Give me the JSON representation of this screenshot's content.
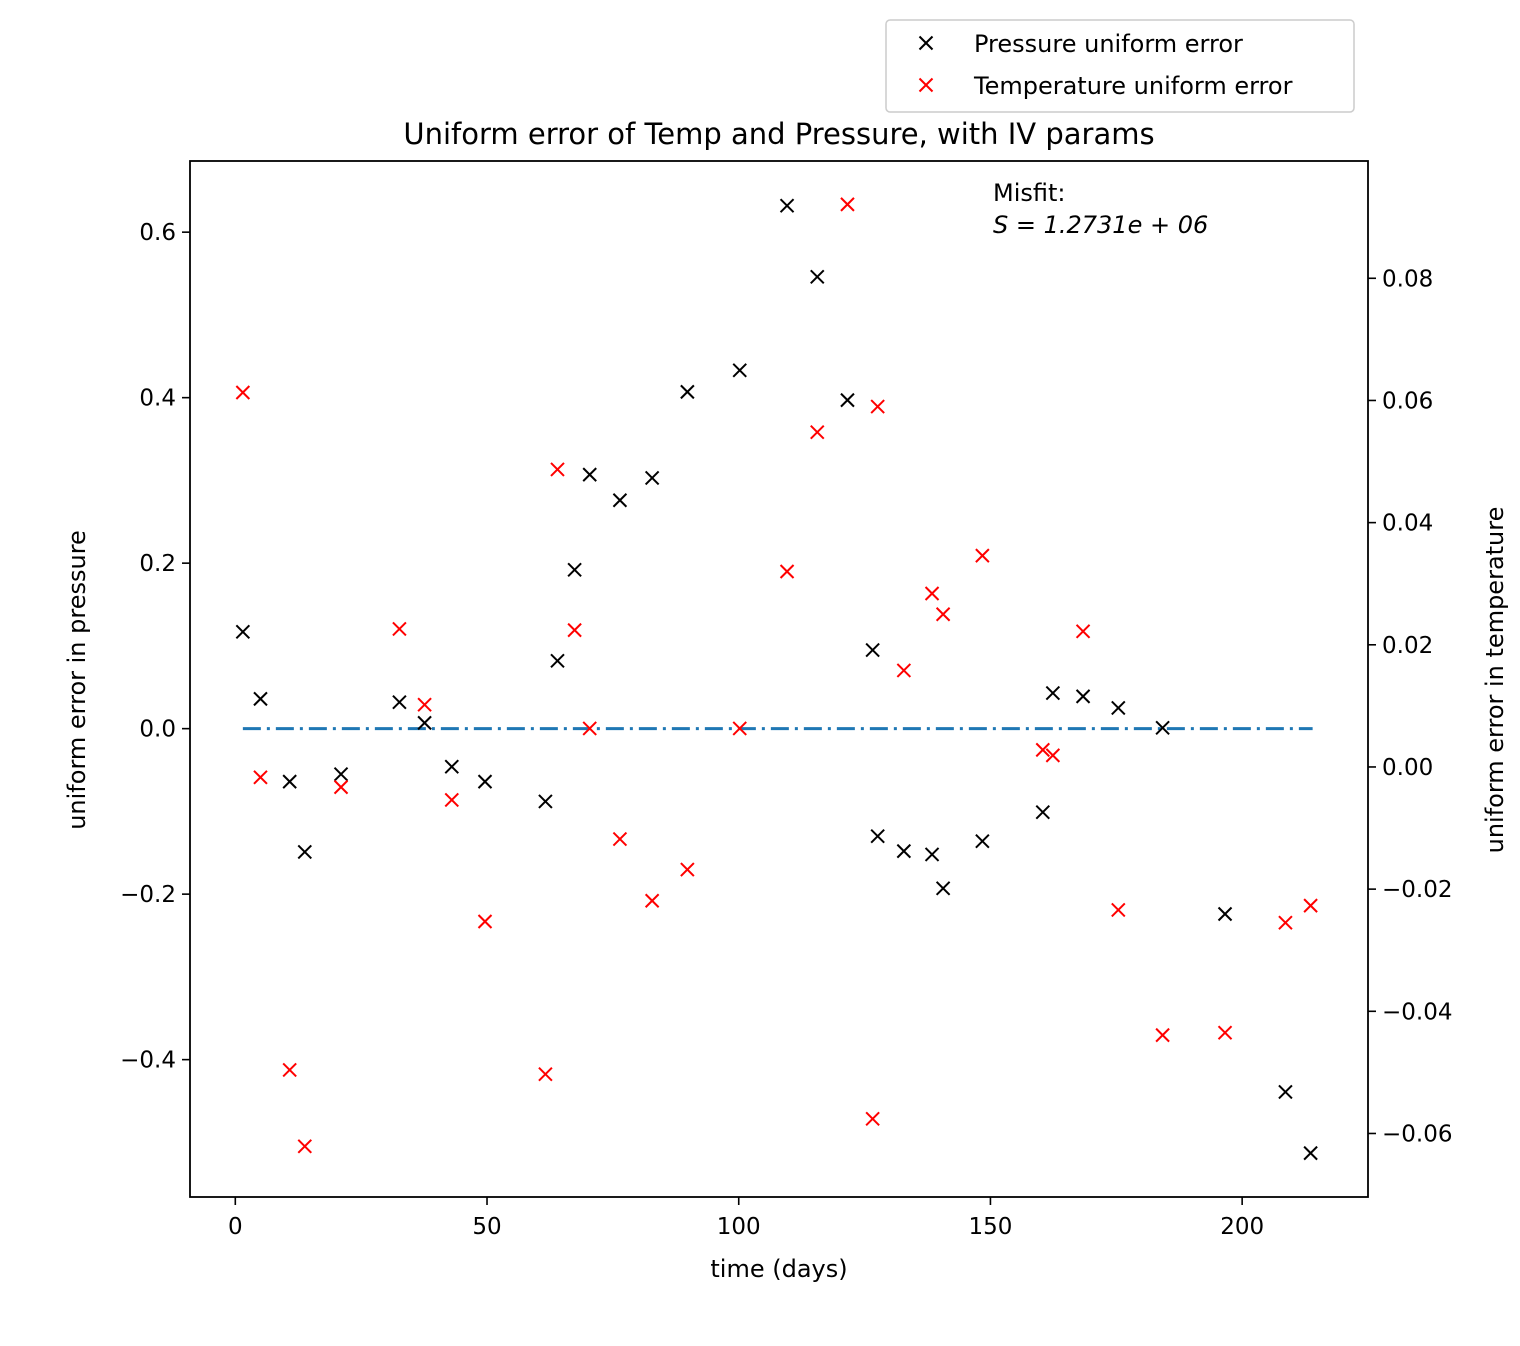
{
  "chart_data": {
    "type": "scatter",
    "title": "Uniform error of Temp and Pressure, with IV params",
    "xlabel": "time (days)",
    "ylabel_left": "uniform error in pressure",
    "ylabel_right": "uniform error in temperature",
    "xlim": [
      -9,
      225
    ],
    "ylim_left": [
      -0.566,
      0.686
    ],
    "ylim_right": [
      -0.0704,
      0.0992
    ],
    "x_ticks": [
      0,
      50,
      100,
      150,
      200
    ],
    "x_tick_labels": [
      "0",
      "50",
      "100",
      "150",
      "200"
    ],
    "y_left_ticks": [
      -0.4,
      -0.2,
      0.0,
      0.2,
      0.4,
      0.6
    ],
    "y_left_tick_labels": [
      "−0.4",
      "−0.2",
      "0.0",
      "0.2",
      "0.4",
      "0.6"
    ],
    "y_right_ticks": [
      -0.06,
      -0.04,
      -0.02,
      0.0,
      0.02,
      0.04,
      0.06,
      0.08
    ],
    "y_right_tick_labels": [
      "−0.06",
      "−0.04",
      "−0.02",
      "0.00",
      "0.02",
      "0.04",
      "0.06",
      "0.08"
    ],
    "grid": false,
    "legend_position": "above plot, top-right",
    "annotation": {
      "line1": "Misfit:",
      "line2": "S = 1.2731e + 06"
    },
    "zero_line": {
      "x_start": 1.5,
      "x_end": 214,
      "y": 0.0,
      "style": "dash-dot",
      "color": "#1f77b4"
    },
    "series": [
      {
        "name": "Pressure uniform error",
        "axis": "left",
        "marker": "x",
        "color": "#000000",
        "x": [
          1.5,
          5,
          10.8,
          13.8,
          21,
          32.6,
          37.6,
          43,
          49.6,
          61.6,
          64,
          67.4,
          70.4,
          76.4,
          82.8,
          89.8,
          100.2,
          109.6,
          115.6,
          121.6,
          126.6,
          127.6,
          132.8,
          138.4,
          140.6,
          148.4,
          160.4,
          162.4,
          168.4,
          175.4,
          184.2,
          196.6,
          208.6,
          213.6
        ],
        "y": [
          0.117,
          0.036,
          -0.064,
          -0.149,
          -0.055,
          0.032,
          0.007,
          -0.046,
          -0.064,
          -0.088,
          0.082,
          0.192,
          0.307,
          0.276,
          0.303,
          0.407,
          0.433,
          0.632,
          0.546,
          0.397,
          0.095,
          -0.13,
          -0.148,
          -0.152,
          -0.193,
          -0.136,
          -0.101,
          0.043,
          0.039,
          0.025,
          0.001,
          -0.224,
          -0.439,
          -0.513
        ]
      },
      {
        "name": "Temperature uniform error",
        "axis": "right",
        "marker": "x",
        "color": "#ff0000",
        "x": [
          1.5,
          5,
          10.8,
          13.8,
          21,
          32.6,
          37.6,
          43,
          49.6,
          61.6,
          64,
          67.4,
          70.4,
          76.4,
          82.8,
          89.8,
          100.2,
          109.6,
          115.6,
          121.6,
          126.6,
          127.6,
          132.8,
          138.4,
          140.6,
          148.4,
          160.4,
          162.4,
          168.4,
          175.4,
          184.2,
          196.6,
          208.6,
          213.6
        ],
        "y": [
          0.0613,
          -0.0017,
          -0.0496,
          -0.0621,
          -0.0033,
          0.0226,
          0.0102,
          -0.0054,
          -0.0253,
          -0.0503,
          0.0487,
          0.0224,
          0.0063,
          -0.0118,
          -0.0219,
          -0.0168,
          0.0063,
          0.032,
          0.0548,
          0.0921,
          -0.0576,
          0.059,
          0.0158,
          0.0284,
          0.025,
          0.0346,
          0.0028,
          0.0019,
          0.0222,
          -0.0234,
          -0.0439,
          -0.0435,
          -0.0255,
          -0.0227
        ]
      }
    ]
  }
}
